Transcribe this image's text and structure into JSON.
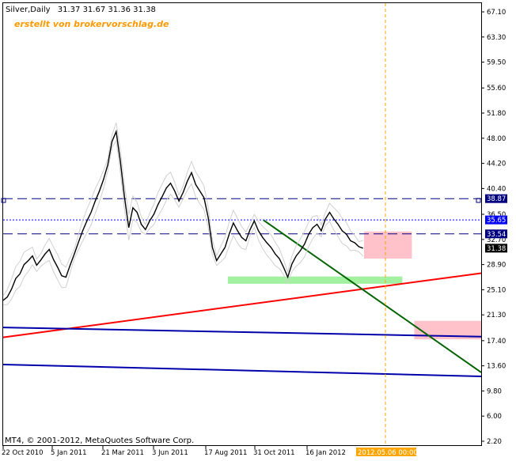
{
  "header": {
    "symbol": "Silver,Daily",
    "ohlc": "31.37 31.67 31.36 31.38",
    "watermark": "erstellt von brokervorschlag.de"
  },
  "footer": {
    "copyright": "MT4, © 2001-2012, MetaQuotes Software Corp."
  },
  "chart_data": {
    "type": "line",
    "title": "Silver,Daily",
    "xlabel": "",
    "ylabel": "",
    "grid": false,
    "ylim": [
      2.2,
      67.1
    ],
    "y_ticks": [
      "67.10",
      "63.30",
      "59.50",
      "55.60",
      "51.80",
      "48.00",
      "44.20",
      "40.40",
      "36.50",
      "32.70",
      "28.90",
      "25.10",
      "21.30",
      "17.40",
      "13.60",
      "9.80",
      "6.00",
      "2.20"
    ],
    "x_ticks": [
      "22 Oct 2010",
      "5 Jan 2011",
      "21 Mar 2011",
      "3 Jun 2011",
      "17 Aug 2011",
      "31 Oct 2011",
      "16 Jan 2012"
    ],
    "time_marker": "2012.05.06 00:00",
    "price_labels": [
      {
        "text": "38.87",
        "value": 38.87,
        "color": "#ffffff",
        "bg": "#000080"
      },
      {
        "text": "35.65",
        "value": 35.65,
        "color": "#ffffff",
        "bg": "#0000ff"
      },
      {
        "text": "33.54",
        "value": 33.54,
        "color": "#ffffff",
        "bg": "#000080"
      },
      {
        "text": "31.38",
        "value": 31.38,
        "color": "#ffffff",
        "bg": "#000000"
      }
    ],
    "horizontal_lines": [
      {
        "value": 38.87,
        "style": "longdash",
        "color": "#000080"
      },
      {
        "value": 35.65,
        "style": "dot",
        "color": "#0000ff"
      },
      {
        "value": 33.54,
        "style": "longdash",
        "color": "#000080"
      }
    ],
    "series": [
      {
        "values": [
          23.5,
          24.0,
          25.2,
          26.8,
          27.5,
          28.9,
          29.5,
          30.2,
          28.8,
          29.6,
          30.5,
          31.2,
          29.7,
          28.5,
          27.2,
          27.0,
          28.8,
          30.5,
          32.3,
          34.0,
          35.5,
          36.8,
          38.5,
          40.0,
          41.8,
          44.0,
          47.5,
          49.0,
          44.5,
          39.0,
          34.5,
          37.5,
          36.8,
          35.0,
          34.2,
          35.5,
          36.5,
          38.0,
          39.2,
          40.5,
          41.2,
          40.0,
          38.5,
          39.8,
          41.5,
          42.8,
          41.0,
          40.0,
          39.0,
          36.0,
          31.5,
          29.5,
          30.5,
          31.5,
          33.5,
          35.2,
          34.0,
          33.0,
          32.5,
          34.2,
          35.5,
          34.0,
          33.0,
          32.2,
          31.5,
          30.5,
          29.8,
          28.5,
          27.0,
          29.0,
          30.2,
          31.0,
          32.0,
          33.5,
          34.5,
          35.0,
          34.0,
          35.8,
          36.8,
          35.8,
          35.0,
          34.0,
          33.5,
          32.5,
          32.2,
          31.6,
          31.38
        ]
      }
    ],
    "trend_lines": [
      {
        "color": "#ff0000",
        "from": [
          0,
          17.9
        ],
        "to": [
          1,
          27.6
        ]
      },
      {
        "color": "#0000aa",
        "from": [
          0,
          19.4
        ],
        "to": [
          1,
          18.0
        ]
      },
      {
        "color": "#0000aa",
        "from": [
          0,
          13.8
        ],
        "to": [
          1,
          12.0
        ]
      },
      {
        "color": "#006400",
        "from": [
          0.545,
          35.6
        ],
        "to": [
          1,
          12.6
        ]
      }
    ],
    "zones": [
      {
        "color": "#ffb6c1",
        "x": [
          0.755,
          0.855
        ],
        "y": [
          29.8,
          33.9
        ]
      },
      {
        "color": "#90ee90",
        "x": [
          0.47,
          0.835
        ],
        "y": [
          26.0,
          27.1
        ]
      },
      {
        "color": "#ffb6c1",
        "x": [
          0.86,
          1.0
        ],
        "y": [
          17.6,
          20.4
        ]
      }
    ]
  }
}
